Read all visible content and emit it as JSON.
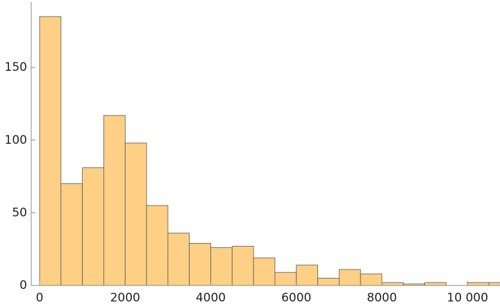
{
  "chart_data": {
    "type": "histogram",
    "bins": [
      0,
      500,
      1000,
      1500,
      2000,
      2500,
      3000,
      3500,
      4000,
      4500,
      5000,
      5500,
      6000,
      6500,
      7000,
      7500,
      8000,
      8500,
      9000,
      9500,
      10000,
      10500,
      11000
    ],
    "values": [
      185,
      70,
      81,
      117,
      98,
      55,
      36,
      29,
      26,
      27,
      19,
      9,
      14,
      5,
      11,
      8,
      2,
      1,
      2,
      0,
      2,
      2
    ],
    "color": "#fdd085",
    "xlim": [
      -195,
      10760
    ],
    "ylim": [
      0,
      195
    ],
    "xticks": [
      0,
      2000,
      4000,
      6000,
      8000,
      {
        "value": 10000,
        "label": "10 000"
      }
    ],
    "yticks": [
      0,
      50,
      100,
      150
    ]
  }
}
